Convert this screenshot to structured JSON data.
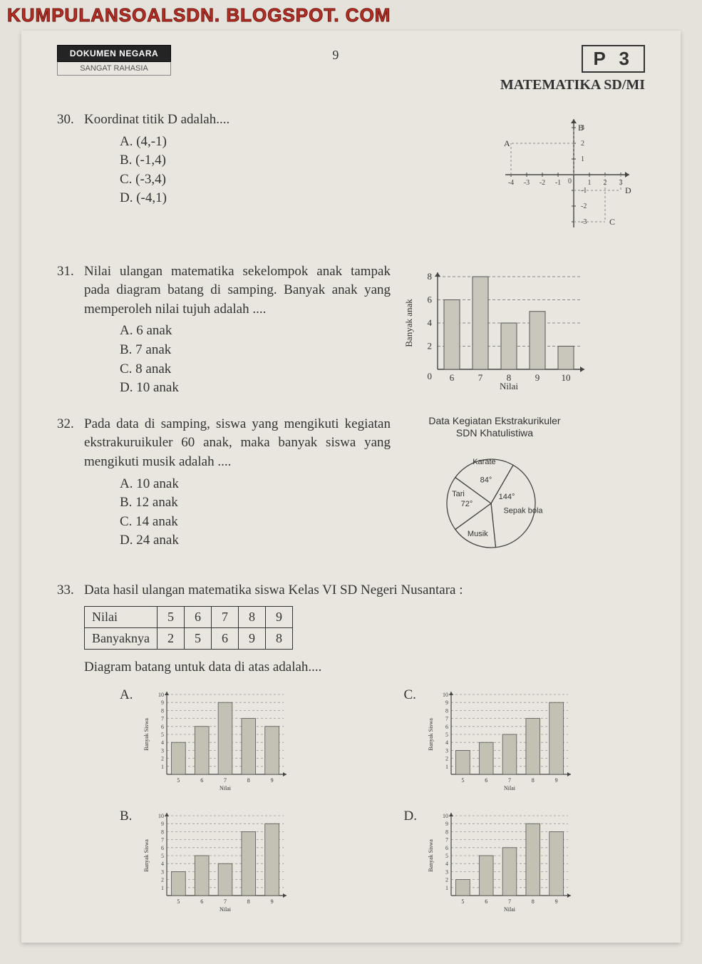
{
  "watermark": "KUMPULANSOALSDN. BLOGSPOT. COM",
  "header": {
    "doc_black": "DOKUMEN NEGARA",
    "doc_white": "SANGAT RAHASIA",
    "page_number": "9",
    "code": "P 3",
    "subject": "MATEMATIKA SD/MI"
  },
  "q30": {
    "number": "30.",
    "text": "Koordinat titik D adalah....",
    "options": {
      "A": "A.  (4,-1)",
      "B": "B.  (-1,4)",
      "C": "C.  (-3,4)",
      "D": "D.  (-4,1)"
    },
    "coord_plot": {
      "xlim": [
        -4,
        3
      ],
      "ylim": [
        -3,
        3
      ],
      "xticks": [
        -4,
        -3,
        -2,
        -1,
        0,
        1,
        2,
        3
      ],
      "yticks": [
        -3,
        -2,
        -1,
        1,
        2,
        3
      ],
      "points": {
        "A": [
          -4,
          2
        ],
        "B": [
          0,
          3
        ],
        "C": [
          2,
          -3
        ],
        "D": [
          3,
          -1
        ]
      },
      "axis_color": "#444",
      "guide_color": "#888"
    }
  },
  "q31": {
    "number": "31.",
    "text": "Nilai ulangan matematika sekelompok anak tampak pada diagram batang di samping. Banyak anak yang memperoleh  nilai tujuh adalah ....",
    "options": {
      "A": "A.   6  anak",
      "B": "B.   7  anak",
      "C": "C.   8  anak",
      "D": "D.  10  anak"
    },
    "chart": {
      "type": "bar",
      "xlabel": "Nilai",
      "ylabel": "Banyak anak",
      "categories": [
        "6",
        "7",
        "8",
        "9",
        "10"
      ],
      "values": [
        6,
        8,
        4,
        5,
        2
      ],
      "yticks": [
        2,
        4,
        6,
        8
      ],
      "bar_color": "#c9c6bb",
      "grid_color": "#888",
      "axis_color": "#444",
      "bar_width": 0.55,
      "label_fontsize": 12
    }
  },
  "q32": {
    "number": "32.",
    "text": "Pada data di samping, siswa yang mengikuti kegiatan ekstrakuruikuler 60 anak, maka banyak siswa yang mengikuti musik adalah ....",
    "options": {
      "A": "A.  10 anak",
      "B": "B.  12 anak",
      "C": "C.  14 anak",
      "D": "D.  24 anak"
    },
    "pie": {
      "title1": "Data Kegiatan Ekstrakurikuler",
      "title2": "SDN Khatulistiwa",
      "slices": [
        {
          "label": "Sepak bola",
          "angle_deg": 144
        },
        {
          "label": "Musik",
          "angle_deg": 60
        },
        {
          "label": "Tari",
          "angle_deg": 72,
          "angle_label": "72°"
        },
        {
          "label": "Karate",
          "angle_deg": 84,
          "angle_label": "84°"
        }
      ],
      "angle_label_144": "144°",
      "stroke": "#444",
      "fill": "#e8e6de"
    }
  },
  "q33": {
    "number": "33.",
    "text": "Data hasil ulangan matematika siswa Kelas VI SD Negeri Nusantara :",
    "table": {
      "row1_label": "Nilai",
      "row1": [
        "5",
        "6",
        "7",
        "8",
        "9"
      ],
      "row2_label": "Banyaknya",
      "row2": [
        "2",
        "5",
        "6",
        "9",
        "8"
      ]
    },
    "prompt": "Diagram batang untuk data di atas adalah....",
    "small_chart": {
      "xlabel": "Nilai",
      "ylabel": "Banyak Siswa",
      "categories": [
        "5",
        "6",
        "7",
        "8",
        "9"
      ],
      "yticks": [
        1,
        2,
        3,
        4,
        5,
        6,
        7,
        8,
        9,
        10
      ],
      "bar_color": "#c3c0b4",
      "grid_color": "#999",
      "axis_color": "#444",
      "bar_width": 0.6
    },
    "choices": {
      "A": {
        "letter": "A.",
        "values": [
          4,
          6,
          9,
          7,
          6
        ]
      },
      "B": {
        "letter": "B.",
        "values": [
          3,
          5,
          4,
          8,
          9
        ]
      },
      "C": {
        "letter": "C.",
        "values": [
          3,
          4,
          5,
          7,
          9
        ]
      },
      "D": {
        "letter": "D.",
        "values": [
          2,
          5,
          6,
          9,
          8
        ]
      }
    }
  }
}
